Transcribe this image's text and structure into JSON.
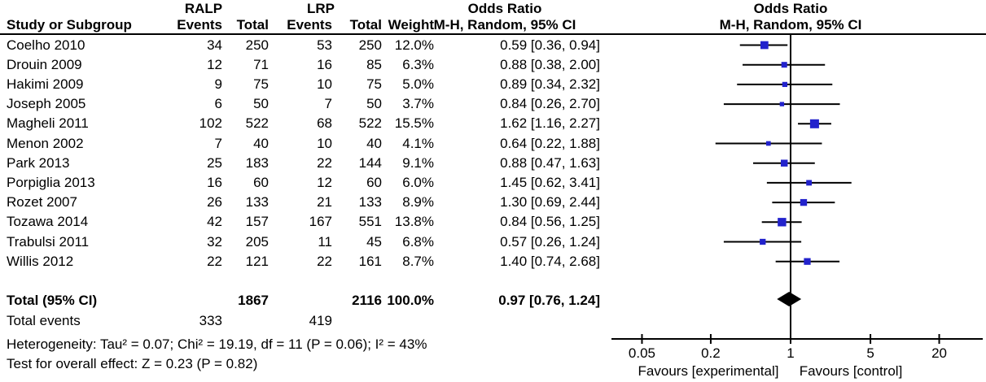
{
  "table": {
    "group1_label": "RALP",
    "group2_label": "LRP",
    "col_study": "Study or Subgroup",
    "col_events": "Events",
    "col_total": "Total",
    "col_weight": "Weight",
    "or_text_header_line1": "Odds Ratio",
    "or_text_header_line2": "M-H, Random, 95% CI",
    "plot_header_line1": "Odds Ratio",
    "plot_header_line2": "M-H, Random, 95% CI"
  },
  "chart_data": {
    "type": "forest",
    "effect_measure": "Odds Ratio",
    "method": "M-H, Random, 95% CI",
    "studies": [
      {
        "name": "Coelho 2010",
        "ralp_events": 34,
        "ralp_total": 250,
        "lrp_events": 53,
        "lrp_total": 250,
        "weight": "12.0%",
        "weight_pct": 12.0,
        "or": 0.59,
        "ci_low": 0.36,
        "ci_high": 0.94,
        "or_label": "0.59 [0.36, 0.94]"
      },
      {
        "name": "Drouin 2009",
        "ralp_events": 12,
        "ralp_total": 71,
        "lrp_events": 16,
        "lrp_total": 85,
        "weight": "6.3%",
        "weight_pct": 6.3,
        "or": 0.88,
        "ci_low": 0.38,
        "ci_high": 2.0,
        "or_label": "0.88 [0.38, 2.00]"
      },
      {
        "name": "Hakimi 2009",
        "ralp_events": 9,
        "ralp_total": 75,
        "lrp_events": 10,
        "lrp_total": 75,
        "weight": "5.0%",
        "weight_pct": 5.0,
        "or": 0.89,
        "ci_low": 0.34,
        "ci_high": 2.32,
        "or_label": "0.89 [0.34, 2.32]"
      },
      {
        "name": "Joseph 2005",
        "ralp_events": 6,
        "ralp_total": 50,
        "lrp_events": 7,
        "lrp_total": 50,
        "weight": "3.7%",
        "weight_pct": 3.7,
        "or": 0.84,
        "ci_low": 0.26,
        "ci_high": 2.7,
        "or_label": "0.84 [0.26, 2.70]"
      },
      {
        "name": "Magheli 2011",
        "ralp_events": 102,
        "ralp_total": 522,
        "lrp_events": 68,
        "lrp_total": 522,
        "weight": "15.5%",
        "weight_pct": 15.5,
        "or": 1.62,
        "ci_low": 1.16,
        "ci_high": 2.27,
        "or_label": "1.62 [1.16, 2.27]"
      },
      {
        "name": "Menon 2002",
        "ralp_events": 7,
        "ralp_total": 40,
        "lrp_events": 10,
        "lrp_total": 40,
        "weight": "4.1%",
        "weight_pct": 4.1,
        "or": 0.64,
        "ci_low": 0.22,
        "ci_high": 1.88,
        "or_label": "0.64 [0.22, 1.88]"
      },
      {
        "name": "Park 2013",
        "ralp_events": 25,
        "ralp_total": 183,
        "lrp_events": 22,
        "lrp_total": 144,
        "weight": "9.1%",
        "weight_pct": 9.1,
        "or": 0.88,
        "ci_low": 0.47,
        "ci_high": 1.63,
        "or_label": "0.88 [0.47, 1.63]"
      },
      {
        "name": "Porpiglia 2013",
        "ralp_events": 16,
        "ralp_total": 60,
        "lrp_events": 12,
        "lrp_total": 60,
        "weight": "6.0%",
        "weight_pct": 6.0,
        "or": 1.45,
        "ci_low": 0.62,
        "ci_high": 3.41,
        "or_label": "1.45 [0.62, 3.41]"
      },
      {
        "name": "Rozet 2007",
        "ralp_events": 26,
        "ralp_total": 133,
        "lrp_events": 21,
        "lrp_total": 133,
        "weight": "8.9%",
        "weight_pct": 8.9,
        "or": 1.3,
        "ci_low": 0.69,
        "ci_high": 2.44,
        "or_label": "1.30 [0.69, 2.44]"
      },
      {
        "name": "Tozawa 2014",
        "ralp_events": 42,
        "ralp_total": 157,
        "lrp_events": 167,
        "lrp_total": 551,
        "weight": "13.8%",
        "weight_pct": 13.8,
        "or": 0.84,
        "ci_low": 0.56,
        "ci_high": 1.25,
        "or_label": "0.84 [0.56, 1.25]"
      },
      {
        "name": "Trabulsi 2011",
        "ralp_events": 32,
        "ralp_total": 205,
        "lrp_events": 11,
        "lrp_total": 45,
        "weight": "6.8%",
        "weight_pct": 6.8,
        "or": 0.57,
        "ci_low": 0.26,
        "ci_high": 1.24,
        "or_label": "0.57 [0.26, 1.24]"
      },
      {
        "name": "Willis 2012",
        "ralp_events": 22,
        "ralp_total": 121,
        "lrp_events": 22,
        "lrp_total": 161,
        "weight": "8.7%",
        "weight_pct": 8.7,
        "or": 1.4,
        "ci_low": 0.74,
        "ci_high": 2.68,
        "or_label": "1.40 [0.74, 2.68]"
      }
    ],
    "total": {
      "label": "Total (95% CI)",
      "ralp_total": 1867,
      "lrp_total": 2116,
      "weight": "100.0%",
      "or": 0.97,
      "ci_low": 0.76,
      "ci_high": 1.24,
      "or_label": "0.97 [0.76, 1.24]"
    },
    "total_events": {
      "label": "Total events",
      "ralp": 333,
      "lrp": 419
    },
    "axis": {
      "scale": "log",
      "ticks": [
        0.05,
        0.2,
        1,
        5,
        20
      ],
      "tick_labels": [
        "0.05",
        "0.2",
        "1",
        "5",
        "20"
      ],
      "null_line": 1
    },
    "favours_left": "Favours [experimental]",
    "favours_right": "Favours [control]"
  },
  "footer": {
    "heterogeneity": "Heterogeneity: Tau² = 0.07; Chi² = 19.19, df = 11 (P = 0.06); I² = 43%",
    "overall_effect": "Test for overall effect: Z = 0.23 (P = 0.82)"
  },
  "colors": {
    "marker": "#2222cc",
    "diamond": "#000000",
    "line": "#000000",
    "text": "#000000"
  }
}
